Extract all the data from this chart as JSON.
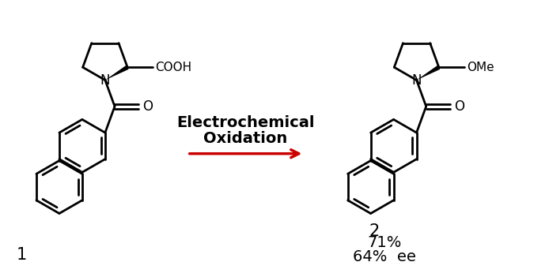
{
  "background_color": "#ffffff",
  "compound1_label": "1",
  "compound2_label": "2",
  "arrow_label_line1": "Electrochemical",
  "arrow_label_line2": "Oxidation",
  "yield_text": "71%",
  "ee_text": "64%  ee",
  "arrow_color": "#cc0000",
  "text_color": "#000000",
  "line_color": "#000000",
  "line_width": 2.0,
  "font_size_label": 15,
  "font_size_arrow": 13,
  "font_size_yield": 12
}
